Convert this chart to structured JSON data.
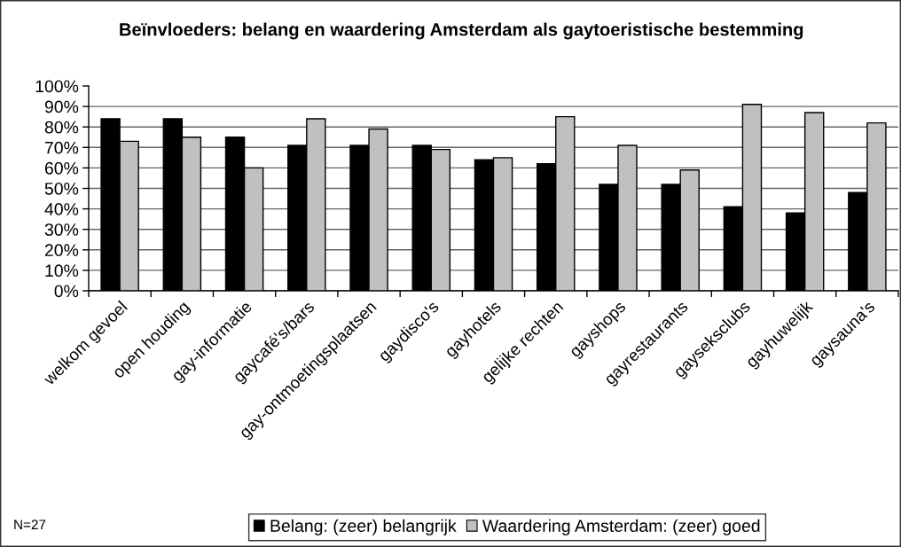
{
  "chart_data": {
    "type": "bar",
    "title": "Beïnvloeders: belang en waardering Amsterdam als gaytoeristische bestemming",
    "categories": [
      "welkom gevoel",
      "open houding",
      "gay-informatie",
      "gaycafé's/bars",
      "gay-ontmoetingsplaatsen",
      "gaydisco's",
      "gayhotels",
      "gelijke rechten",
      "gayshops",
      "gayrestaurants",
      "gayseksclubs",
      "gayhuwelijk",
      "gaysauna's"
    ],
    "series": [
      {
        "name": "Belang: (zeer) belangrijk",
        "color": "#000000",
        "values": [
          84,
          84,
          75,
          71,
          71,
          71,
          64,
          62,
          52,
          52,
          41,
          38,
          48
        ]
      },
      {
        "name": "Waardering Amsterdam: (zeer) goed",
        "color": "#c0c0c0",
        "values": [
          73,
          75,
          60,
          84,
          79,
          69,
          65,
          85,
          71,
          59,
          91,
          87,
          82
        ]
      }
    ],
    "ylim": [
      0,
      100
    ],
    "yticks": [
      {
        "value": 0,
        "label": "0%"
      },
      {
        "value": 10,
        "label": "10%"
      },
      {
        "value": 20,
        "label": "20%"
      },
      {
        "value": 30,
        "label": "30%"
      },
      {
        "value": 40,
        "label": "40%"
      },
      {
        "value": 50,
        "label": "50%"
      },
      {
        "value": 60,
        "label": "60%"
      },
      {
        "value": 70,
        "label": "70%"
      },
      {
        "value": 80,
        "label": "80%"
      },
      {
        "value": 90,
        "label": "90%"
      },
      {
        "value": 100,
        "label": "100%"
      }
    ],
    "grid": "y",
    "legend": "bottom",
    "annotations": [
      "N=27"
    ]
  }
}
